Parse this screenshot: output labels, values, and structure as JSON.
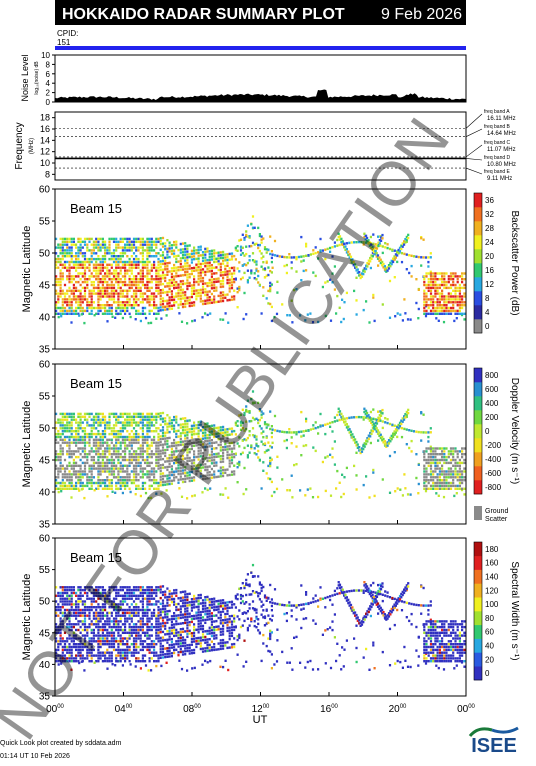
{
  "header": {
    "title": "HOKKAIDO RADAR SUMMARY PLOT",
    "date": "9 Feb 2026",
    "cpid_label": "CPID:",
    "cpid_value": "151"
  },
  "noise_panel": {
    "ylabel": "Noise Level",
    "ylabel_sub": "log₁₀(noise) dB",
    "yticks": [
      "0",
      "2",
      "4",
      "6",
      "8",
      "10"
    ]
  },
  "frequency_panel": {
    "ylabel": "Frequency",
    "ylabel_unit": "(MHz)",
    "yticks": [
      "8",
      "10",
      "12",
      "14",
      "16",
      "18"
    ],
    "bands": [
      {
        "label": "freq band A",
        "value": "16.11 MHz",
        "mhz": 16.11
      },
      {
        "label": "freq band B",
        "value": "14.64 MHz",
        "mhz": 14.64
      },
      {
        "label": "freq band C",
        "value": "11.07 MHz",
        "mhz": 11.07
      },
      {
        "label": "freq band D",
        "value": "10.80 MHz",
        "mhz": 10.8
      },
      {
        "label": "freq band E",
        "value": "9.11 MHz",
        "mhz": 9.11
      }
    ],
    "active_mhz": 10.8
  },
  "beam_panels": [
    {
      "name": "power",
      "beam_label": "Beam 15",
      "ylabel": "Magnetic Latitude",
      "yticks": [
        "35",
        "40",
        "45",
        "50",
        "55",
        "60"
      ],
      "colorbar_title": "Backscatter Power (dB)",
      "colorbar_ticks": [
        "0",
        "4",
        "8",
        "12",
        "16",
        "20",
        "24",
        "28",
        "32",
        "36"
      ],
      "colors": [
        "#8a8a8a",
        "#2a2aa0",
        "#2a4de0",
        "#28a8e0",
        "#30c870",
        "#a0e030",
        "#f0f020",
        "#f0b020",
        "#f07020",
        "#e02020"
      ]
    },
    {
      "name": "velocity",
      "beam_label": "Beam 15",
      "ylabel": "Magnetic Latitude",
      "yticks": [
        "35",
        "40",
        "45",
        "50",
        "55",
        "60"
      ],
      "colorbar_title": "Doppler Velocity (m s⁻¹)",
      "colorbar_ticks": [
        "-800",
        "-600",
        "-400",
        "-200",
        "0",
        "200",
        "400",
        "600",
        "800"
      ],
      "ground_scatter": "Ground Scatter",
      "colors": [
        "#e02020",
        "#f06020",
        "#f0a020",
        "#f0e020",
        "#c0e830",
        "#70d840",
        "#30c080",
        "#2890d0",
        "#3030c0"
      ]
    },
    {
      "name": "width",
      "beam_label": "Beam 15",
      "ylabel": "Magnetic Latitude",
      "yticks": [
        "35",
        "40",
        "45",
        "50",
        "55",
        "60"
      ],
      "colorbar_title": "Spectral Width (m s⁻¹)",
      "colorbar_ticks": [
        "0",
        "20",
        "40",
        "60",
        "80",
        "100",
        "120",
        "140",
        "160",
        "180"
      ],
      "colors": [
        "#3030c0",
        "#2a5ae0",
        "#28a8e0",
        "#30c870",
        "#a0e030",
        "#f0f020",
        "#f0b020",
        "#f07020",
        "#e02020",
        "#b01010"
      ]
    }
  ],
  "x_axis": {
    "ticks": [
      {
        "hh": "00",
        "mm": "00"
      },
      {
        "hh": "04",
        "mm": "00"
      },
      {
        "hh": "08",
        "mm": "00"
      },
      {
        "hh": "12",
        "mm": "00"
      },
      {
        "hh": "16",
        "mm": "00"
      },
      {
        "hh": "20",
        "mm": "00"
      },
      {
        "hh": "00",
        "mm": "00"
      }
    ],
    "label": "UT"
  },
  "footer": {
    "credit": "Quick Look plot created by sddata.adm",
    "timestamp": "01:14 UT 10 Feb 2026",
    "logo": "ISEE"
  },
  "watermark": "NOT FOR PUBLICATION"
}
